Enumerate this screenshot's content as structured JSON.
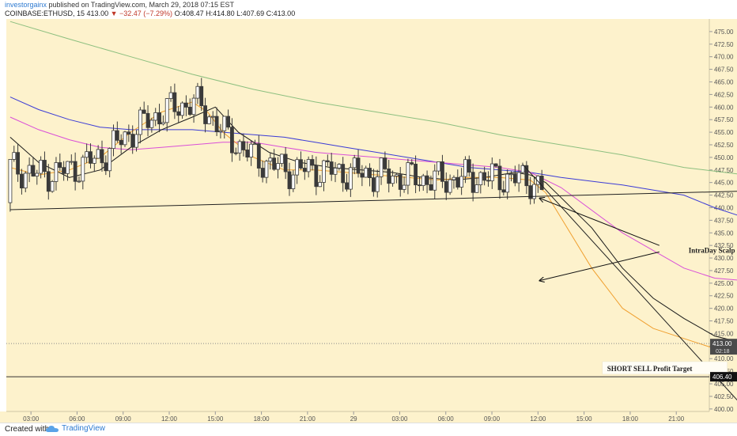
{
  "header": {
    "author": "investorgainx",
    "published": "published on TradingView.com, March 29, 2018 07:15 EST",
    "symbol": "COINBASE:ETHUSD, 15",
    "last": "413.00",
    "change": "▼ −32.47 (−7.29%)",
    "ohlc": "O:408.47 H:414.80 L:407.69 C:413.00"
  },
  "footer": {
    "created_with": "Created with",
    "brand": "TradingView"
  },
  "colors": {
    "background": "#fdf2cc",
    "candle": "#3a3a3a",
    "ema_fast": "#f0a030",
    "ema_mid": "#1a1a1a",
    "ma_blue": "#3b3bd6",
    "ma_pink": "#d94fd8",
    "ma_green": "#8cbf7f"
  },
  "chart_data": {
    "type": "candlestick",
    "symbol": "COINBASE:ETHUSD",
    "interval": "15",
    "x_ticks": [
      "03:00",
      "06:00",
      "09:00",
      "12:00",
      "15:00",
      "18:00",
      "21:00",
      "29",
      "03:00",
      "06:00",
      "09:00",
      "12:00",
      "15:00",
      "18:00",
      "21:00"
    ],
    "y_ticks": [
      400.0,
      402.5,
      405.0,
      407.5,
      410.0,
      412.5,
      415.0,
      417.5,
      420.0,
      422.5,
      425.0,
      427.5,
      430.0,
      432.5,
      435.0,
      437.5,
      440.0,
      442.5,
      445.0,
      447.5,
      450.0,
      452.5,
      455.0,
      457.5,
      460.0,
      462.5,
      465.0,
      467.5,
      470.0,
      472.5,
      475.0
    ],
    "ylim": [
      399.5,
      477.5
    ],
    "xlim_hours": [
      0,
      48
    ],
    "price_labels": [
      {
        "value": 413.0,
        "text": "413.00",
        "sub": "02:18",
        "style": "dark"
      },
      {
        "value": 406.4,
        "text": "406.40",
        "style": "black"
      }
    ],
    "horizontal_lines": [
      {
        "name": "last-price",
        "value": 413.0,
        "dotted": true
      },
      {
        "name": "profit-target",
        "value": 406.4,
        "dotted": false
      }
    ],
    "trendlines": [
      {
        "name": "support-line",
        "points": [
          [
            0.15,
            439.6
          ],
          [
            48,
            443.3
          ]
        ]
      },
      {
        "name": "resistance-line",
        "points": [
          [
            33.5,
            448.6
          ],
          [
            47.6,
            401.3
          ]
        ]
      }
    ],
    "annotations": [
      {
        "text": "IntraDay Scalp Sell",
        "x": 44.3,
        "y": 431.5
      },
      {
        "text": "SHORT SELL Profit Target",
        "x": 39.0,
        "y": 408.0,
        "box": true
      }
    ],
    "arrows": [
      {
        "from": [
          42.4,
          432.5
        ],
        "to": [
          34.6,
          441.9
        ]
      },
      {
        "from": [
          42.4,
          431.2
        ],
        "to": [
          34.6,
          425.5
        ]
      }
    ],
    "moving_averages": [
      {
        "color_key": "ma_green",
        "points": [
          [
            0.15,
            477.0
          ],
          [
            4,
            473.5
          ],
          [
            8,
            470.0
          ],
          [
            12,
            466.5
          ],
          [
            16,
            463.5
          ],
          [
            20,
            461.0
          ],
          [
            24,
            459.0
          ],
          [
            28,
            457.0
          ],
          [
            32,
            454.5
          ],
          [
            36,
            452.5
          ],
          [
            40,
            450.5
          ],
          [
            44,
            448.0
          ],
          [
            48,
            446.5
          ]
        ]
      },
      {
        "color_key": "ma_blue",
        "points": [
          [
            0.15,
            462.0
          ],
          [
            2,
            459.5
          ],
          [
            4,
            457.5
          ],
          [
            6,
            456.0
          ],
          [
            8,
            455.5
          ],
          [
            10,
            455.5
          ],
          [
            12,
            455.5
          ],
          [
            14,
            455.0
          ],
          [
            16,
            454.5
          ],
          [
            18,
            454.0
          ],
          [
            20,
            453.0
          ],
          [
            22,
            452.0
          ],
          [
            24,
            451.0
          ],
          [
            26,
            450.0
          ],
          [
            28,
            449.0
          ],
          [
            30,
            448.0
          ],
          [
            32,
            447.5
          ],
          [
            34,
            447.0
          ],
          [
            36,
            446.0
          ],
          [
            40,
            444.5
          ],
          [
            44,
            442.5
          ],
          [
            46,
            440.0
          ],
          [
            48,
            438.0
          ]
        ]
      },
      {
        "color_key": "ma_pink",
        "points": [
          [
            0.15,
            458.0
          ],
          [
            2,
            455.5
          ],
          [
            4,
            453.5
          ],
          [
            6,
            452.0
          ],
          [
            8,
            451.5
          ],
          [
            10,
            452.0
          ],
          [
            12,
            452.5
          ],
          [
            14,
            453.0
          ],
          [
            16,
            453.0
          ],
          [
            18,
            452.0
          ],
          [
            20,
            451.0
          ],
          [
            22,
            450.5
          ],
          [
            24,
            450.0
          ],
          [
            26,
            449.5
          ],
          [
            28,
            449.0
          ],
          [
            30,
            448.5
          ],
          [
            32,
            448.0
          ],
          [
            34,
            447.0
          ],
          [
            36,
            444.0
          ],
          [
            40,
            435.0
          ],
          [
            44,
            428.0
          ],
          [
            46,
            426.0
          ],
          [
            48,
            425.5
          ]
        ]
      },
      {
        "color_key": "ema_mid",
        "points": [
          [
            0.15,
            454.0
          ],
          [
            2,
            449.0
          ],
          [
            4,
            446.0
          ],
          [
            6,
            447.5
          ],
          [
            8,
            452.0
          ],
          [
            10,
            455.5
          ],
          [
            12,
            458.0
          ],
          [
            13.5,
            460.0
          ],
          [
            15,
            455.0
          ],
          [
            17,
            451.0
          ],
          [
            19,
            449.0
          ],
          [
            21,
            448.0
          ],
          [
            23,
            447.5
          ],
          [
            25,
            447.0
          ],
          [
            27,
            446.0
          ],
          [
            29,
            445.5
          ],
          [
            31,
            446.0
          ],
          [
            33,
            447.0
          ],
          [
            34,
            446.5
          ],
          [
            35,
            445.0
          ],
          [
            36,
            442.0
          ],
          [
            38,
            436.0
          ],
          [
            40,
            428.0
          ],
          [
            42,
            422.0
          ],
          [
            44,
            418.0
          ],
          [
            46,
            414.5
          ],
          [
            48,
            413.0
          ]
        ]
      },
      {
        "color_key": "ema_fast",
        "points": [
          [
            0.15,
            448.0
          ],
          [
            2,
            446.5
          ],
          [
            4,
            447.5
          ],
          [
            6,
            450.0
          ],
          [
            8,
            455.0
          ],
          [
            10,
            459.0
          ],
          [
            12,
            461.0
          ],
          [
            13,
            459.0
          ],
          [
            14,
            455.0
          ],
          [
            16,
            450.0
          ],
          [
            18,
            447.5
          ],
          [
            20,
            447.5
          ],
          [
            22,
            447.0
          ],
          [
            24,
            446.5
          ],
          [
            26,
            446.0
          ],
          [
            28,
            445.5
          ],
          [
            30,
            446.0
          ],
          [
            32,
            446.0
          ],
          [
            34,
            445.5
          ],
          [
            35,
            443.0
          ],
          [
            36,
            438.0
          ],
          [
            38,
            428.0
          ],
          [
            40,
            420.0
          ],
          [
            42,
            416.0
          ],
          [
            44,
            414.0
          ],
          [
            46,
            412.0
          ],
          [
            48,
            411.5
          ]
        ]
      }
    ]
  }
}
